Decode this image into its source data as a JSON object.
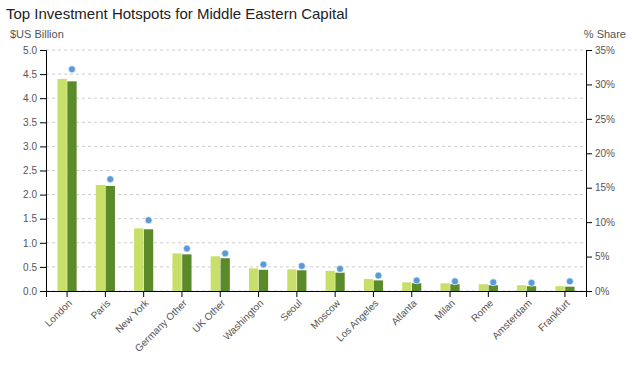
{
  "chart_data": {
    "type": "bar",
    "title": "Top Investment Hotspots for Middle Eastern Capital",
    "ylabel": "$US Billion",
    "y2label": "% Share",
    "categories": [
      "London",
      "Paris",
      "New York",
      "Germany Other",
      "UK Other",
      "Washington",
      "Seoul",
      "Moscow",
      "Los Angeles",
      "Atlanta",
      "Milan",
      "Rome",
      "Amsterdam",
      "Frankfurt"
    ],
    "series": [
      {
        "type": "bar",
        "color": "#c8e06a",
        "values": [
          4.4,
          2.2,
          1.3,
          0.78,
          0.72,
          0.47,
          0.45,
          0.42,
          0.25,
          0.18,
          0.16,
          0.14,
          0.12,
          0.1
        ]
      },
      {
        "type": "bar",
        "color": "#5a8a2a",
        "values": [
          4.35,
          2.18,
          1.28,
          0.76,
          0.68,
          0.44,
          0.43,
          0.38,
          0.22,
          0.16,
          0.14,
          0.12,
          0.1,
          0.09
        ]
      },
      {
        "type": "scatter",
        "color": "#5b9bd5",
        "marker": "circle",
        "values": [
          4.6,
          2.32,
          1.47,
          0.88,
          0.78,
          0.55,
          0.52,
          0.46,
          0.32,
          0.22,
          0.2,
          0.18,
          0.17,
          0.2
        ]
      }
    ],
    "ylim": [
      0,
      5.0
    ],
    "yticks": [
      {
        "value": 0.0,
        "label": "0.0"
      },
      0.5,
      {
        "value": 1.0,
        "label": "1.0"
      },
      1.5,
      {
        "value": 2.0,
        "label": "2.0"
      },
      2.5,
      {
        "value": 3.0,
        "label": "3.0"
      },
      3.5,
      {
        "value": 4.0,
        "label": "4.0"
      },
      4.5,
      {
        "value": 5.0,
        "label": "5.0"
      }
    ],
    "y2lim": [
      0,
      35
    ],
    "y2ticks": [
      {
        "value": 0,
        "label": "0%"
      },
      {
        "value": 5,
        "label": "5%"
      },
      {
        "value": 10,
        "label": "10%"
      },
      {
        "value": 15,
        "label": "15%"
      },
      {
        "value": 20,
        "label": "20%"
      },
      {
        "value": 25,
        "label": "25%"
      },
      {
        "value": 30,
        "label": "30%"
      },
      {
        "value": 35,
        "label": "35%"
      }
    ],
    "grid": true
  }
}
